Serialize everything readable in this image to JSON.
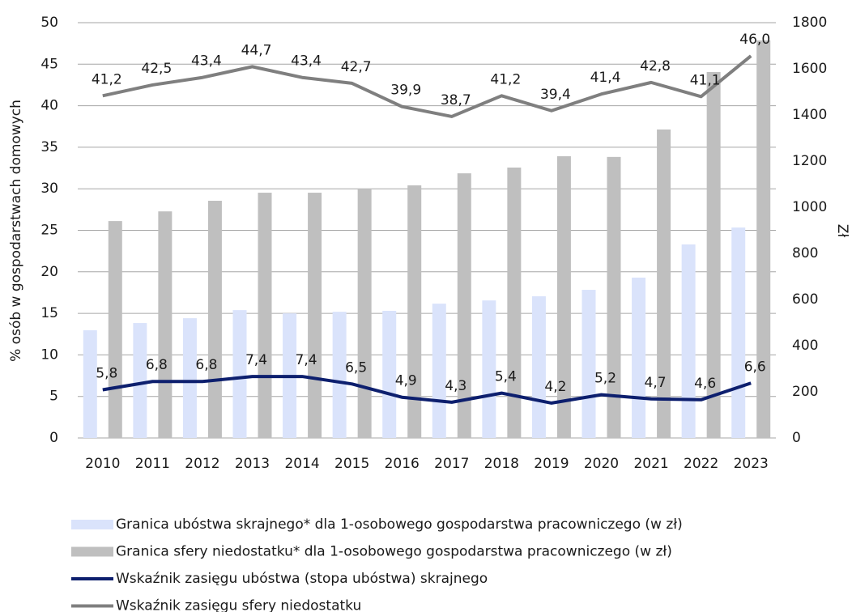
{
  "chart_data": {
    "type": "bar",
    "categories": [
      "2010",
      "2011",
      "2012",
      "2013",
      "2014",
      "2015",
      "2016",
      "2017",
      "2018",
      "2019",
      "2020",
      "2021",
      "2022",
      "2023"
    ],
    "y_label": "% osób w gospodarstwach domowych",
    "y2_label": "Zł",
    "ylim": [
      0,
      50
    ],
    "yticks": [
      0,
      5,
      10,
      15,
      20,
      25,
      30,
      35,
      40,
      45,
      50
    ],
    "y2lim": [
      0,
      1800
    ],
    "y2ticks": [
      0,
      200,
      400,
      600,
      800,
      1000,
      1200,
      1400,
      1600,
      1800
    ],
    "grid": true,
    "series": [
      {
        "name": "Granica ubóstwa skrajnego* dla 1-osobowego gospodarstwa pracowniczego (w zł)",
        "type": "bar",
        "axis": "y2",
        "color": "#dae3fb",
        "values": [
          467,
          498,
          519,
          554,
          540,
          547,
          551,
          582,
          596,
          614,
          642,
          695,
          839,
          912
        ]
      },
      {
        "name": "Granica sfery niedostatku* dla 1-osobowego gospodarstwa pracowniczego (w zł)",
        "type": "bar",
        "axis": "y2",
        "color": "#bfbfbf",
        "values": [
          940,
          982,
          1028,
          1063,
          1063,
          1081,
          1095,
          1147,
          1172,
          1221,
          1218,
          1337,
          1586,
          1723
        ]
      },
      {
        "name": "Wskaźnik zasięgu ubóstwa (stopa ubóstwa) skrajnego",
        "type": "line",
        "color": "#0d1f6e",
        "values": [
          5.8,
          6.8,
          6.8,
          7.4,
          7.4,
          6.5,
          4.9,
          4.3,
          5.4,
          4.2,
          5.2,
          4.7,
          4.6,
          6.6
        ],
        "value_labels": [
          "5,8",
          "6,8",
          "6,8",
          "7,4",
          "7,4",
          "6,5",
          "4,9",
          "4,3",
          "5,4",
          "4,2",
          "5,2",
          "4,7",
          "4,6",
          "6,6"
        ]
      },
      {
        "name": "Wskaźnik zasięgu sfery niedostatku",
        "type": "line",
        "color": "#7f7f7f",
        "values": [
          41.2,
          42.5,
          43.4,
          44.7,
          43.4,
          42.7,
          39.9,
          38.7,
          41.2,
          39.4,
          41.4,
          42.8,
          41.1,
          46.0
        ],
        "value_labels": [
          "41,2",
          "42,5",
          "43,4",
          "44,7",
          "43,4",
          "42,7",
          "39,9",
          "38,7",
          "41,2",
          "39,4",
          "41,4",
          "42,8",
          "41,1",
          "46,0"
        ]
      }
    ]
  }
}
